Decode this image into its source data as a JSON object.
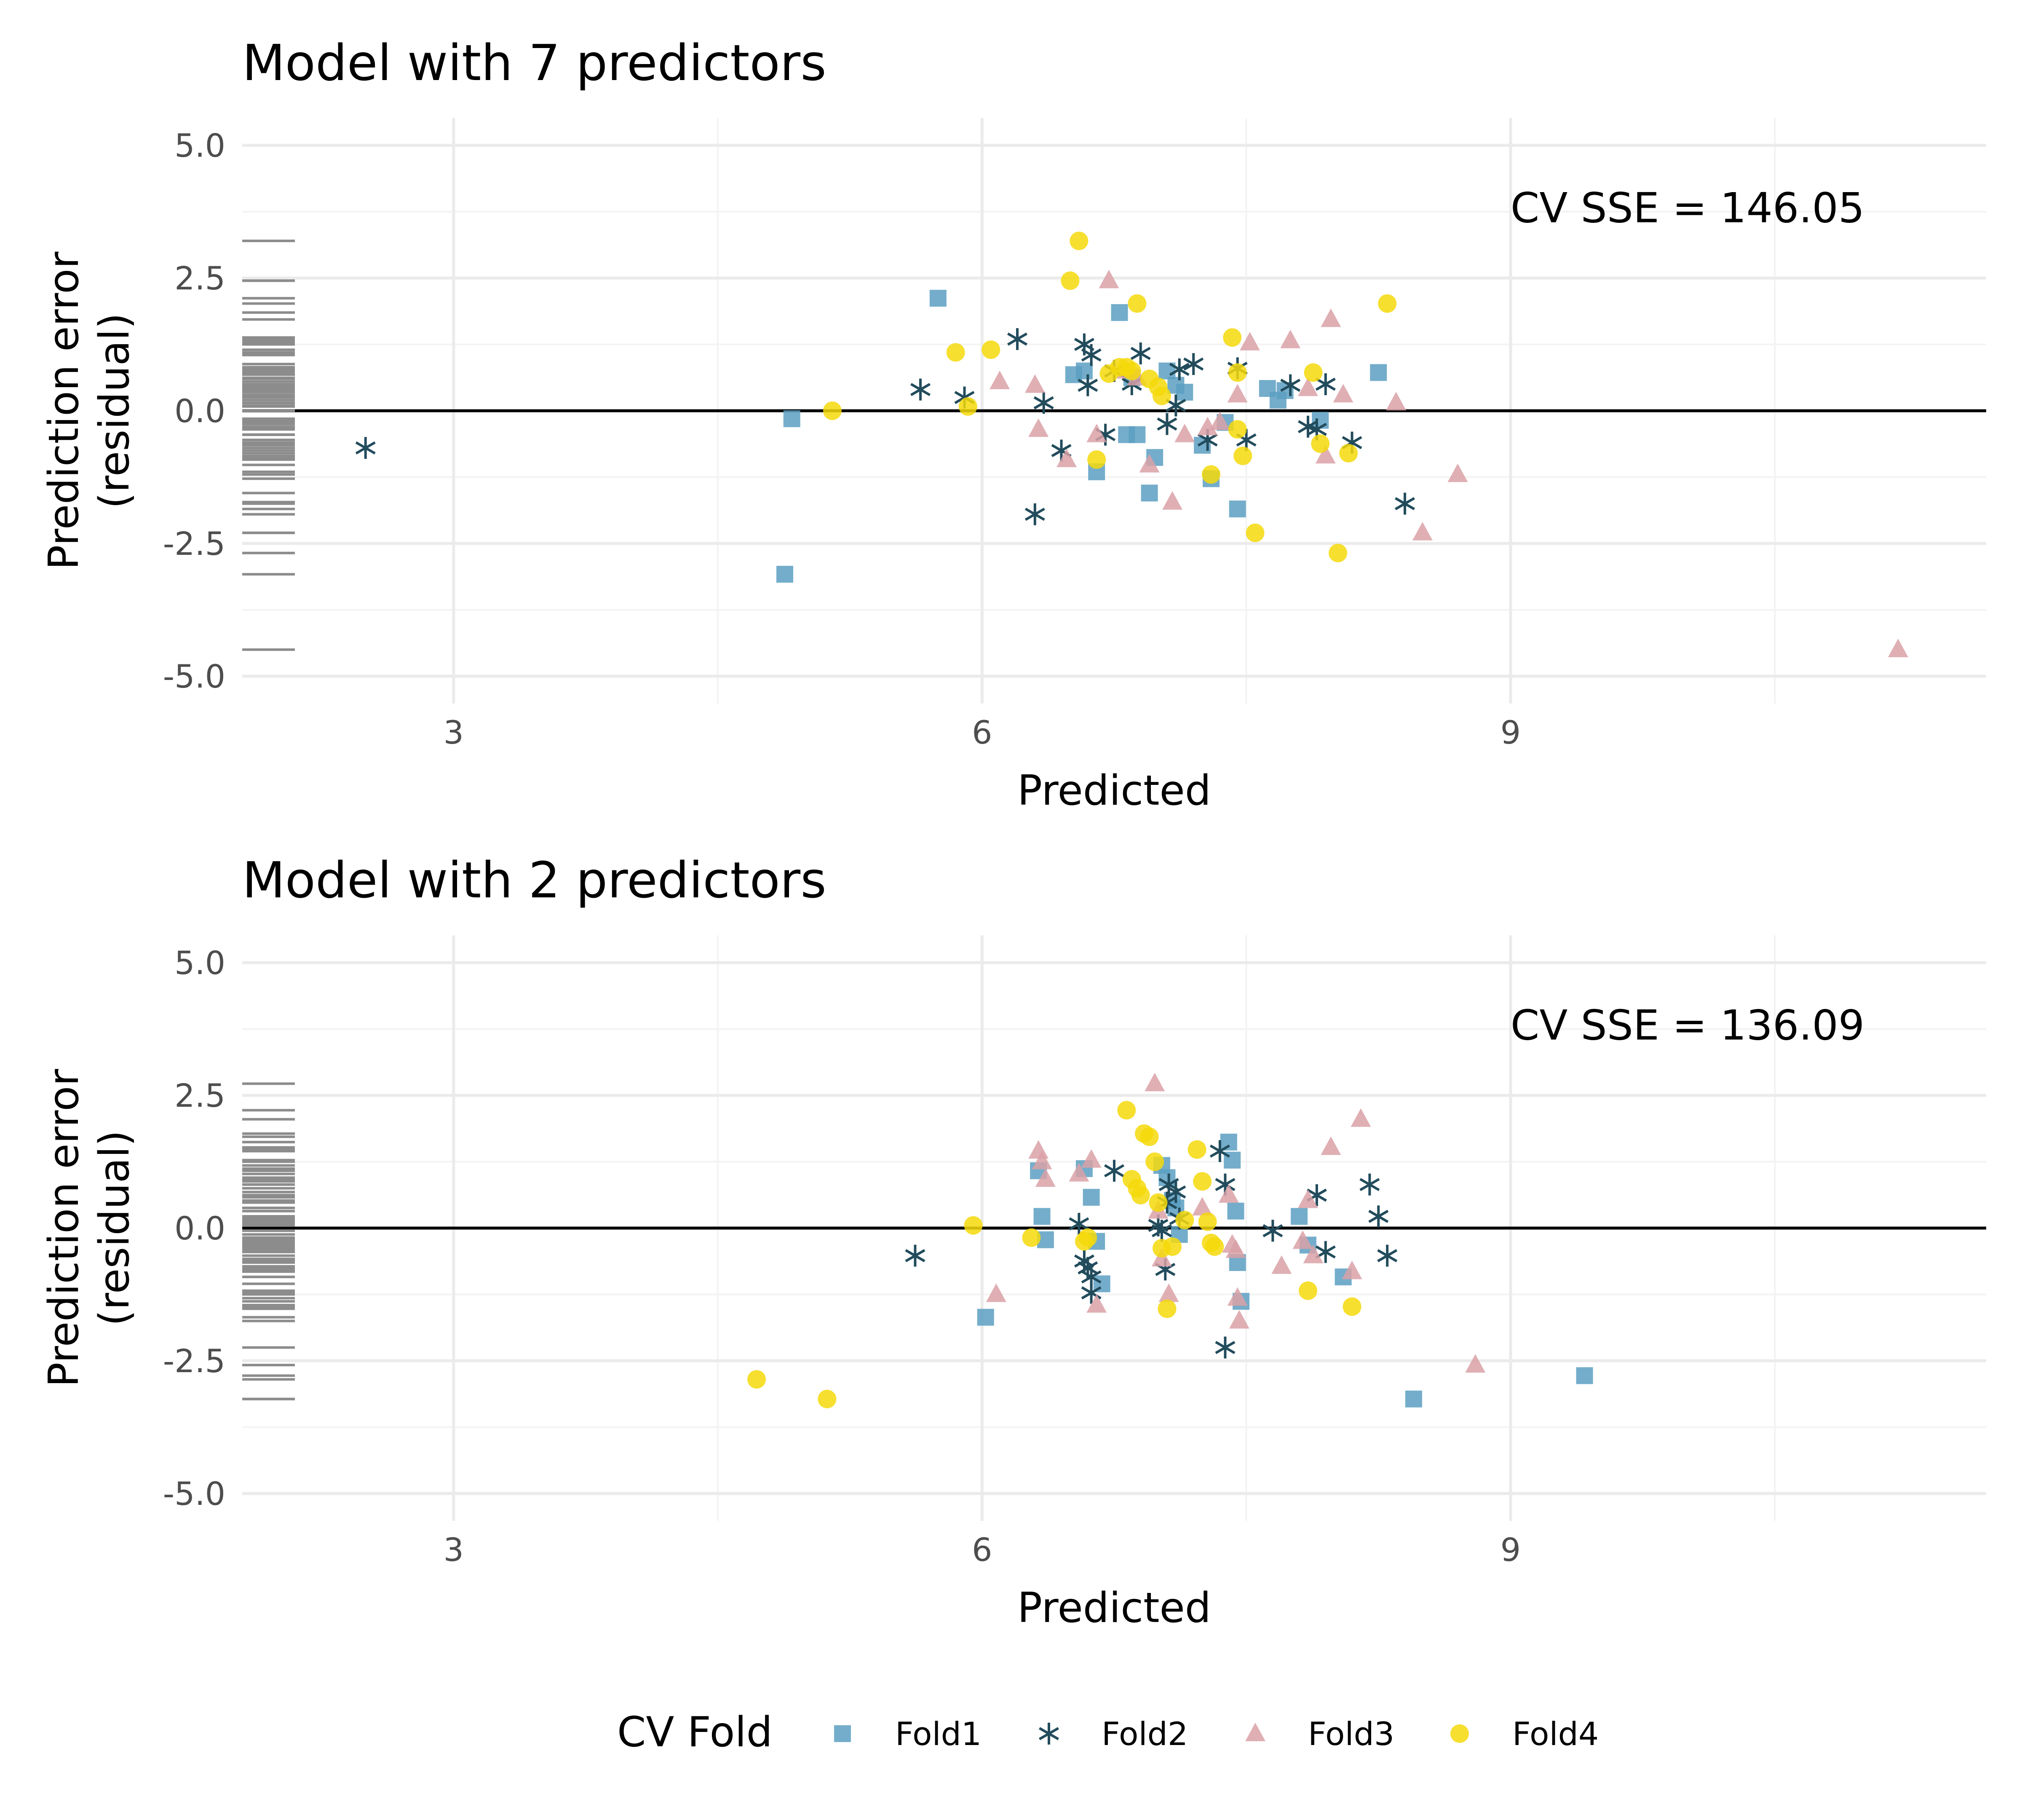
{
  "chart_data": [
    {
      "type": "scatter",
      "title": "Model with 7 predictors",
      "xlabel": "Predicted",
      "ylabel": [
        "Prediction error",
        "(residual)"
      ],
      "xlim": [
        1.8,
        11.7
      ],
      "ylim": [
        -5.0,
        5.0
      ],
      "xticks": [
        3,
        6,
        9
      ],
      "xtick_labels": [
        "3",
        "6",
        "9"
      ],
      "yticks": [
        5.0,
        2.5,
        0.0,
        -2.5,
        -5.0
      ],
      "ytick_labels": [
        "5.0",
        "2.5",
        "0.0",
        "-2.5",
        "-5.0"
      ],
      "grid": true,
      "reference_line_y": 0,
      "annotation": "CV SSE = 146.05",
      "series": [
        {
          "name": "Fold1",
          "points": [
            [
              5.75,
              2.12
            ],
            [
              4.92,
              -0.15
            ],
            [
              4.88,
              -3.08
            ],
            [
              6.52,
              0.68
            ],
            [
              6.58,
              0.75
            ],
            [
              6.78,
              1.85
            ],
            [
              6.85,
              0.62
            ],
            [
              6.82,
              -0.45
            ],
            [
              6.88,
              -0.45
            ],
            [
              6.65,
              -1.15
            ],
            [
              6.95,
              -1.55
            ],
            [
              6.98,
              -0.88
            ],
            [
              7.05,
              0.75
            ],
            [
              7.1,
              0.48
            ],
            [
              7.15,
              0.35
            ],
            [
              7.25,
              -0.65
            ],
            [
              7.3,
              -1.28
            ],
            [
              7.38,
              -0.22
            ],
            [
              7.45,
              -1.85
            ],
            [
              7.62,
              0.42
            ],
            [
              7.68,
              0.2
            ],
            [
              7.72,
              0.38
            ],
            [
              7.92,
              -0.18
            ],
            [
              8.25,
              0.72
            ]
          ]
        },
        {
          "name": "Fold2",
          "points": [
            [
              2.5,
              -0.7
            ],
            [
              5.65,
              0.4
            ],
            [
              5.9,
              0.25
            ],
            [
              6.2,
              1.35
            ],
            [
              6.3,
              -1.95
            ],
            [
              6.35,
              0.15
            ],
            [
              6.45,
              -0.75
            ],
            [
              6.58,
              1.25
            ],
            [
              6.62,
              1.05
            ],
            [
              6.6,
              0.48
            ],
            [
              6.7,
              -0.45
            ],
            [
              6.75,
              0.75
            ],
            [
              6.85,
              0.5
            ],
            [
              6.9,
              1.08
            ],
            [
              7.05,
              -0.25
            ],
            [
              7.1,
              0.1
            ],
            [
              7.12,
              0.78
            ],
            [
              7.2,
              0.88
            ],
            [
              7.28,
              -0.55
            ],
            [
              7.45,
              0.8
            ],
            [
              7.5,
              -0.55
            ],
            [
              7.75,
              0.48
            ],
            [
              7.85,
              -0.3
            ],
            [
              7.9,
              -0.35
            ],
            [
              7.95,
              0.5
            ],
            [
              8.1,
              -0.6
            ],
            [
              8.4,
              -1.75
            ]
          ]
        },
        {
          "name": "Fold3",
          "points": [
            [
              6.1,
              0.55
            ],
            [
              6.3,
              0.48
            ],
            [
              6.32,
              -0.35
            ],
            [
              6.48,
              -0.92
            ],
            [
              6.65,
              -0.45
            ],
            [
              6.72,
              2.45
            ],
            [
              6.82,
              0.75
            ],
            [
              6.88,
              0.62
            ],
            [
              6.95,
              -1.02
            ],
            [
              7.08,
              -1.72
            ],
            [
              7.15,
              -0.45
            ],
            [
              7.28,
              -0.32
            ],
            [
              7.35,
              -0.22
            ],
            [
              7.45,
              0.3
            ],
            [
              7.52,
              1.28
            ],
            [
              7.75,
              1.32
            ],
            [
              7.85,
              0.42
            ],
            [
              7.95,
              -0.85
            ],
            [
              7.98,
              1.72
            ],
            [
              8.05,
              0.3
            ],
            [
              8.35,
              0.15
            ],
            [
              8.5,
              -2.3
            ],
            [
              8.7,
              -1.2
            ],
            [
              11.2,
              -4.5
            ]
          ]
        },
        {
          "name": "Fold4",
          "points": [
            [
              5.15,
              0.0
            ],
            [
              5.85,
              1.1
            ],
            [
              5.92,
              0.08
            ],
            [
              6.05,
              1.15
            ],
            [
              6.5,
              2.45
            ],
            [
              6.55,
              3.2
            ],
            [
              6.65,
              -0.92
            ],
            [
              6.72,
              0.7
            ],
            [
              6.78,
              0.82
            ],
            [
              6.82,
              0.82
            ],
            [
              6.85,
              0.75
            ],
            [
              6.88,
              2.02
            ],
            [
              6.95,
              0.6
            ],
            [
              7.0,
              0.45
            ],
            [
              7.02,
              0.28
            ],
            [
              7.3,
              -1.2
            ],
            [
              7.42,
              1.38
            ],
            [
              7.45,
              0.72
            ],
            [
              7.45,
              -0.35
            ],
            [
              7.48,
              -0.85
            ],
            [
              7.55,
              -2.3
            ],
            [
              7.88,
              0.72
            ],
            [
              7.92,
              -0.62
            ],
            [
              8.02,
              -2.68
            ],
            [
              8.08,
              -0.8
            ],
            [
              8.3,
              2.02
            ]
          ]
        }
      ]
    },
    {
      "type": "scatter",
      "title": "Model with 2 predictors",
      "xlabel": "Predicted",
      "ylabel": [
        "Prediction error",
        "(residual)"
      ],
      "xlim": [
        1.8,
        11.7
      ],
      "ylim": [
        -5.0,
        5.0
      ],
      "xticks": [
        3,
        6,
        9
      ],
      "xtick_labels": [
        "3",
        "6",
        "9"
      ],
      "yticks": [
        5.0,
        2.5,
        0.0,
        -2.5,
        -5.0
      ],
      "ytick_labels": [
        "5.0",
        "2.5",
        "0.0",
        "-2.5",
        "-5.0"
      ],
      "grid": true,
      "reference_line_y": 0,
      "annotation": "CV SSE = 136.09",
      "series": [
        {
          "name": "Fold1",
          "points": [
            [
              6.02,
              -1.68
            ],
            [
              6.32,
              1.08
            ],
            [
              6.34,
              0.22
            ],
            [
              6.36,
              -0.22
            ],
            [
              6.58,
              1.12
            ],
            [
              6.62,
              0.58
            ],
            [
              6.65,
              -0.25
            ],
            [
              6.68,
              -1.05
            ],
            [
              7.02,
              1.18
            ],
            [
              7.05,
              0.95
            ],
            [
              7.08,
              0.52
            ],
            [
              7.1,
              0.38
            ],
            [
              7.12,
              -0.12
            ],
            [
              7.4,
              1.62
            ],
            [
              7.42,
              1.28
            ],
            [
              7.44,
              0.32
            ],
            [
              7.45,
              -0.65
            ],
            [
              7.47,
              -1.38
            ],
            [
              7.8,
              0.22
            ],
            [
              7.85,
              -0.32
            ],
            [
              8.05,
              -0.92
            ],
            [
              8.45,
              -3.22
            ],
            [
              9.42,
              -2.78
            ]
          ]
        },
        {
          "name": "Fold2",
          "points": [
            [
              5.62,
              -0.52
            ],
            [
              6.55,
              0.08
            ],
            [
              6.58,
              -0.62
            ],
            [
              6.6,
              -0.75
            ],
            [
              6.62,
              -1.22
            ],
            [
              6.62,
              -0.92
            ],
            [
              6.75,
              1.08
            ],
            [
              7.0,
              0.05
            ],
            [
              7.02,
              -0.05
            ],
            [
              7.04,
              -0.78
            ],
            [
              7.05,
              0.48
            ],
            [
              7.06,
              0.82
            ],
            [
              7.1,
              0.68
            ],
            [
              7.12,
              0.18
            ],
            [
              7.35,
              1.45
            ],
            [
              7.38,
              0.82
            ],
            [
              7.38,
              -2.25
            ],
            [
              7.65,
              -0.05
            ],
            [
              7.9,
              0.62
            ],
            [
              7.95,
              -0.45
            ],
            [
              8.2,
              0.82
            ],
            [
              8.25,
              0.22
            ],
            [
              8.3,
              -0.52
            ]
          ]
        },
        {
          "name": "Fold3",
          "points": [
            [
              6.08,
              -1.25
            ],
            [
              6.32,
              1.45
            ],
            [
              6.34,
              1.25
            ],
            [
              6.36,
              0.92
            ],
            [
              6.55,
              1.02
            ],
            [
              6.62,
              1.28
            ],
            [
              6.65,
              -1.45
            ],
            [
              6.98,
              2.72
            ],
            [
              7.0,
              0.32
            ],
            [
              7.02,
              -0.58
            ],
            [
              7.06,
              -1.25
            ],
            [
              7.25,
              0.38
            ],
            [
              7.4,
              0.62
            ],
            [
              7.42,
              -0.32
            ],
            [
              7.44,
              -0.42
            ],
            [
              7.45,
              -1.32
            ],
            [
              7.46,
              -1.75
            ],
            [
              7.7,
              -0.72
            ],
            [
              7.82,
              -0.25
            ],
            [
              7.85,
              0.52
            ],
            [
              7.88,
              -0.52
            ],
            [
              7.98,
              1.52
            ],
            [
              8.1,
              -0.82
            ],
            [
              8.15,
              2.05
            ],
            [
              8.8,
              -2.58
            ]
          ]
        },
        {
          "name": "Fold4",
          "points": [
            [
              4.72,
              -2.85
            ],
            [
              5.12,
              -3.22
            ],
            [
              5.95,
              0.05
            ],
            [
              6.28,
              -0.18
            ],
            [
              6.58,
              -0.25
            ],
            [
              6.6,
              -0.18
            ],
            [
              6.82,
              2.22
            ],
            [
              6.85,
              0.92
            ],
            [
              6.88,
              0.75
            ],
            [
              6.9,
              0.62
            ],
            [
              6.92,
              1.78
            ],
            [
              6.95,
              1.72
            ],
            [
              6.98,
              1.25
            ],
            [
              7.0,
              0.48
            ],
            [
              7.02,
              -0.38
            ],
            [
              7.05,
              -1.52
            ],
            [
              7.08,
              -0.35
            ],
            [
              7.15,
              0.15
            ],
            [
              7.22,
              1.48
            ],
            [
              7.25,
              0.88
            ],
            [
              7.28,
              0.12
            ],
            [
              7.3,
              -0.28
            ],
            [
              7.32,
              -0.35
            ],
            [
              7.85,
              -1.18
            ],
            [
              8.1,
              -1.48
            ]
          ]
        }
      ]
    }
  ],
  "legend": {
    "title": "CV Fold",
    "items": [
      {
        "label": "Fold1",
        "shape": "square",
        "color": "#5c9fc2"
      },
      {
        "label": "Fold2",
        "shape": "asterisk",
        "color": "#224c5c"
      },
      {
        "label": "Fold3",
        "shape": "triangle",
        "color": "#d9a1a7"
      },
      {
        "label": "Fold4",
        "shape": "circle",
        "color": "#f5d90a"
      }
    ]
  },
  "colors": {
    "Fold1": "#5c9fc2",
    "Fold2": "#224c5c",
    "Fold3": "#d9a1a7",
    "Fold4": "#f5d90a",
    "rug": "#8c8c8c",
    "grid_major": "#ebebeb",
    "grid_minor": "#f3f3f3",
    "zero_line": "#000000"
  }
}
